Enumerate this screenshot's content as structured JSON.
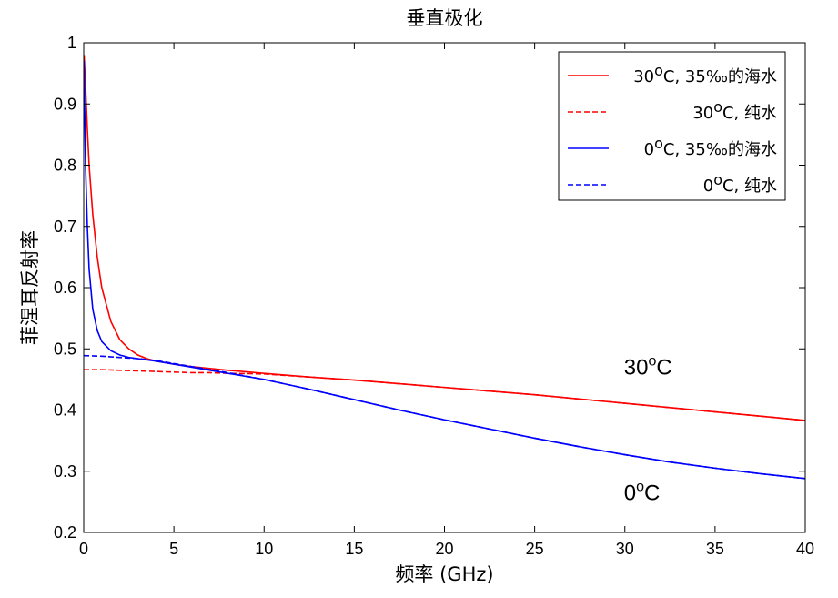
{
  "chart_data": {
    "type": "line",
    "title": "垂直极化",
    "xlabel": "频率 (GHz)",
    "ylabel": "菲涅耳反射率",
    "xlim": [
      0,
      40
    ],
    "ylim": [
      0.2,
      1
    ],
    "xticks": [
      0,
      5,
      10,
      15,
      20,
      25,
      30,
      35,
      40
    ],
    "yticks": [
      0.2,
      0.3,
      0.4,
      0.5,
      0.6,
      0.7,
      0.8,
      0.9,
      1
    ],
    "grid": false,
    "legend_position": "top-right",
    "series": [
      {
        "name": "30°C, 35‰的海水",
        "legend": {
          "main": "30",
          "sup": "o",
          "rest": "C, 35‰的海水"
        },
        "color": "#ff0000",
        "dash": "solid",
        "x": [
          0.02,
          0.1,
          0.2,
          0.3,
          0.5,
          0.75,
          1.0,
          1.5,
          2.0,
          2.5,
          3.0,
          3.5,
          4.0,
          5.0,
          6.0,
          7.0,
          8.0,
          10.0,
          12.5,
          15.0,
          17.5,
          20.0,
          22.5,
          25.0,
          27.5,
          30.0,
          32.5,
          35.0,
          37.5,
          40.0
        ],
        "y": [
          0.98,
          0.93,
          0.86,
          0.8,
          0.72,
          0.65,
          0.6,
          0.545,
          0.515,
          0.5,
          0.49,
          0.484,
          0.48,
          0.475,
          0.471,
          0.468,
          0.465,
          0.46,
          0.454,
          0.449,
          0.443,
          0.437,
          0.431,
          0.425,
          0.418,
          0.411,
          0.404,
          0.397,
          0.39,
          0.383
        ]
      },
      {
        "name": "30°C, 纯水",
        "legend": {
          "main": "30",
          "sup": "o",
          "rest": "C, 纯水"
        },
        "color": "#ff0000",
        "dash": "dashed",
        "x": [
          0,
          1,
          2,
          3,
          4,
          5,
          6,
          7,
          8,
          10,
          12.5,
          15,
          17.5,
          20,
          22.5,
          25,
          27.5,
          30,
          32.5,
          35,
          37.5,
          40
        ],
        "y": [
          0.466,
          0.466,
          0.465,
          0.464,
          0.463,
          0.462,
          0.461,
          0.461,
          0.46,
          0.459,
          0.454,
          0.449,
          0.443,
          0.437,
          0.431,
          0.425,
          0.418,
          0.411,
          0.404,
          0.397,
          0.39,
          0.383
        ]
      },
      {
        "name": "0°C, 35‰的海水",
        "legend": {
          "main": "0",
          "sup": "o",
          "rest": "C, 35‰的海水"
        },
        "color": "#0000ff",
        "dash": "solid",
        "x": [
          0.02,
          0.05,
          0.1,
          0.2,
          0.3,
          0.5,
          0.75,
          1.0,
          1.5,
          2.0,
          2.5,
          3.0,
          4.0,
          5.0,
          6.0,
          7.0,
          8.0,
          10.0,
          12.5,
          15.0,
          17.5,
          20.0,
          22.5,
          25.0,
          27.5,
          30.0,
          32.5,
          35.0,
          37.5,
          40.0
        ],
        "y": [
          0.97,
          0.9,
          0.8,
          0.7,
          0.63,
          0.565,
          0.53,
          0.512,
          0.497,
          0.49,
          0.486,
          0.484,
          0.48,
          0.475,
          0.47,
          0.465,
          0.46,
          0.45,
          0.434,
          0.417,
          0.4,
          0.384,
          0.369,
          0.354,
          0.34,
          0.327,
          0.315,
          0.305,
          0.296,
          0.288
        ]
      },
      {
        "name": "0°C, 纯水",
        "legend": {
          "main": "0",
          "sup": "o",
          "rest": "C, 纯水"
        },
        "color": "#0000ff",
        "dash": "dashed",
        "x": [
          0,
          1,
          2,
          3,
          4,
          5,
          6,
          7,
          8,
          10,
          12.5,
          15,
          17.5,
          20,
          22.5,
          25,
          27.5,
          30,
          32.5,
          35,
          37.5,
          40
        ],
        "y": [
          0.489,
          0.488,
          0.486,
          0.484,
          0.481,
          0.476,
          0.471,
          0.466,
          0.461,
          0.45,
          0.434,
          0.417,
          0.4,
          0.384,
          0.369,
          0.354,
          0.34,
          0.327,
          0.315,
          0.305,
          0.296,
          0.288
        ]
      }
    ],
    "annotations": [
      {
        "main": "30",
        "sup": "o",
        "rest": "C",
        "x": 30,
        "y": 0.47
      },
      {
        "main": "0",
        "sup": "o",
        "rest": "C",
        "x": 30,
        "y": 0.265
      }
    ]
  }
}
